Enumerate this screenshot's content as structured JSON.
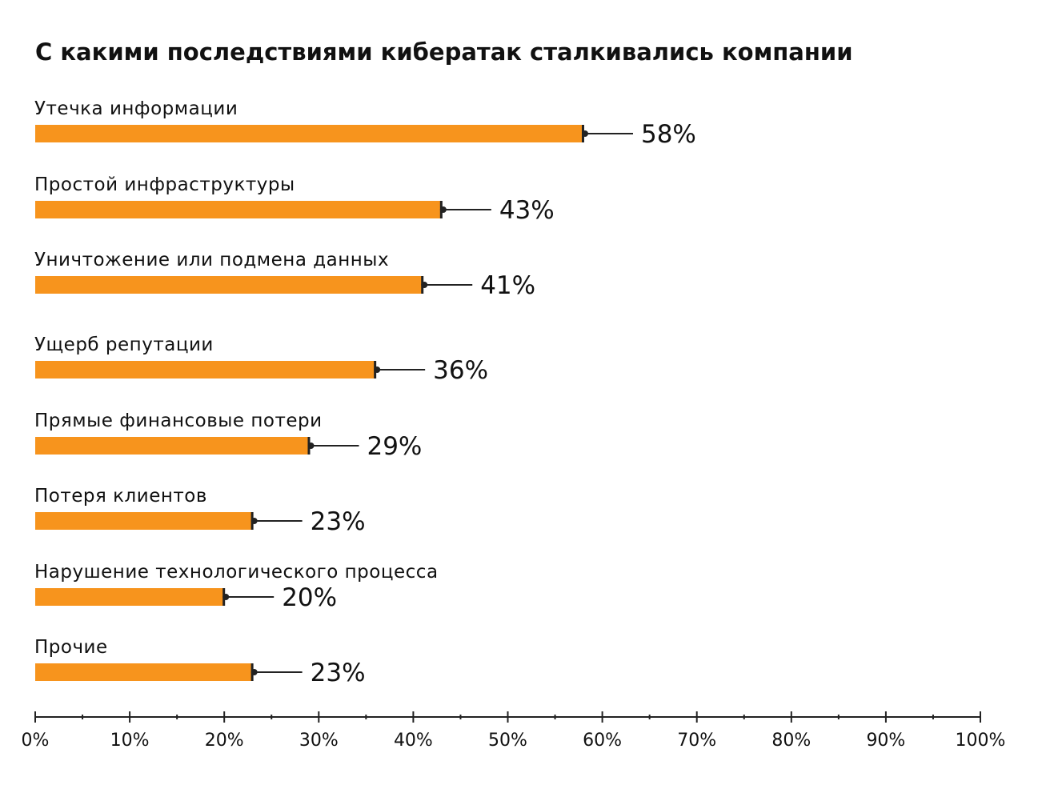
{
  "chart_data": {
    "type": "bar",
    "orientation": "horizontal",
    "title": "С какими последствиями кибератак сталкивались компании",
    "categories": [
      "Утечка информации",
      "Простой инфраструктуры",
      "Уничтожение или подмена данных",
      "Ущерб репутации",
      "Прямые финансовые потери",
      "Потеря клиентов",
      "Нарушение технологического процесса",
      "Прочие"
    ],
    "values": [
      58,
      43,
      41,
      36,
      29,
      23,
      20,
      23
    ],
    "value_labels": [
      "58%",
      "43%",
      "41%",
      "36%",
      "29%",
      "23%",
      "20%",
      "23%"
    ],
    "xlim": [
      0,
      100
    ],
    "x_ticks": [
      0,
      10,
      20,
      30,
      40,
      50,
      60,
      70,
      80,
      90,
      100
    ],
    "x_tick_labels": [
      "0%",
      "10%",
      "20%",
      "30%",
      "40%",
      "50%",
      "60%",
      "70%",
      "80%",
      "90%",
      "100%"
    ],
    "grid": false,
    "colors": {
      "bar": "#F7941D",
      "marker": "#222222"
    }
  }
}
